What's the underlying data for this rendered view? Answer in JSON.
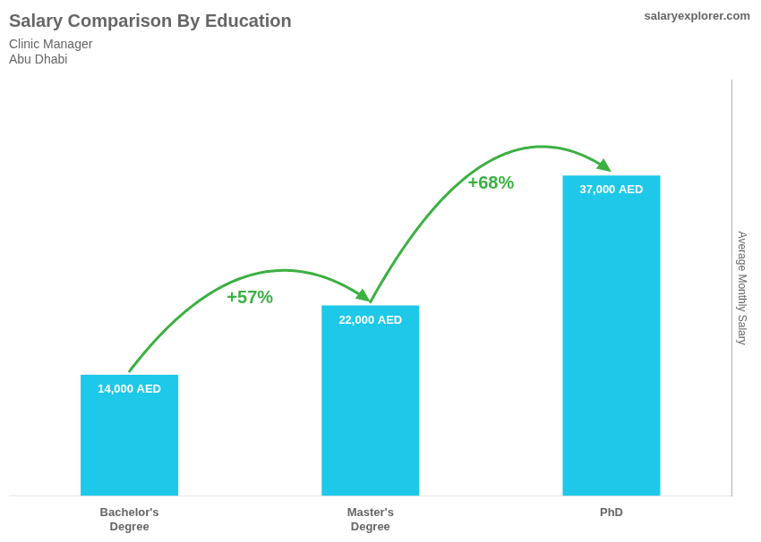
{
  "chart_data": {
    "type": "bar",
    "title": "Salary Comparison By Education",
    "subtitle": [
      "Clinic Manager",
      "Abu Dhabi"
    ],
    "y_label": "Average Monthly Salary",
    "categories": [
      "Bachelor's\nDegree",
      "Master's\nDegree",
      "PhD"
    ],
    "values": [
      14000,
      22000,
      37000
    ],
    "value_labels": [
      "14,000 AED",
      "22,000 AED",
      "37,000 AED"
    ],
    "data_labels": true,
    "annotations": [
      "+57%",
      "+68%",
      "salaryexplorer.com"
    ],
    "color": "#1EC8E8",
    "ylim": [
      0,
      48000
    ],
    "tick_labels": "x",
    "grid": false,
    "legend": false
  }
}
